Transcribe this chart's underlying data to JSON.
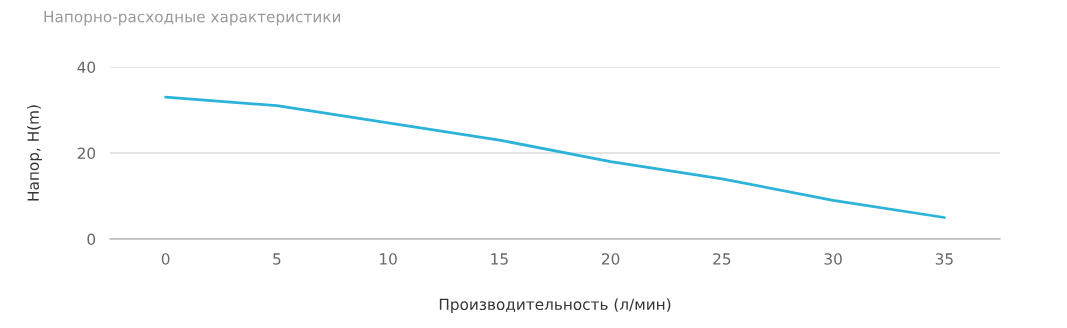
{
  "chart_data": {
    "type": "line",
    "title": "Напорно-расходные характеристики",
    "xlabel": "Производительность (л/мин)",
    "ylabel": "Напор, H(m)",
    "categories": [
      "0",
      "5",
      "10",
      "15",
      "20",
      "25",
      "30",
      "35"
    ],
    "series": [
      {
        "color": "#2bb3d9",
        "values": [
          33,
          31,
          27,
          23,
          18,
          14,
          9,
          5
        ]
      }
    ],
    "ylim": [
      0,
      40
    ],
    "yticks": [
      0,
      20,
      40
    ],
    "grid": "y",
    "marker": "none",
    "line_style": "solid"
  }
}
